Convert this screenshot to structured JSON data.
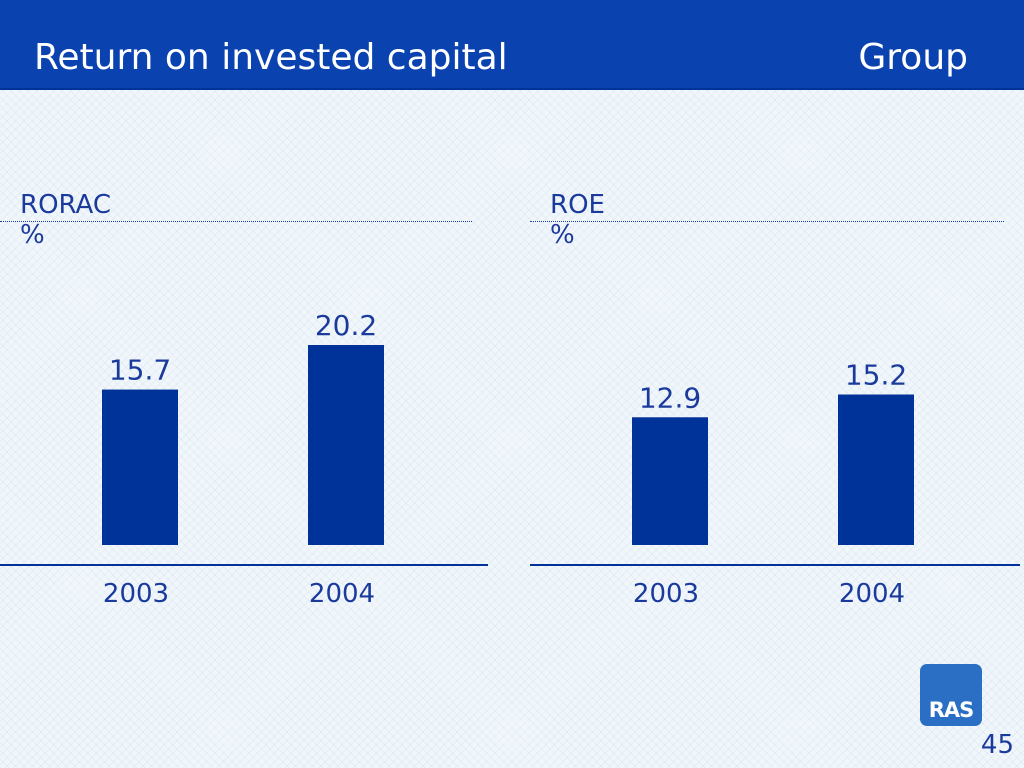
{
  "header": {
    "title": "Return on invested capital",
    "group": "Group"
  },
  "colors": {
    "header_bg": "#0a42b0",
    "bar": "#003399",
    "text": "#1a3a9c",
    "logo_bg": "#2a6fc4"
  },
  "chart_data": [
    {
      "type": "bar",
      "title": "RORAC",
      "unit": "%",
      "categories": [
        "2003",
        "2004"
      ],
      "values": [
        15.7,
        20.2
      ],
      "data_labels": [
        "15.7",
        "20.2"
      ]
    },
    {
      "type": "bar",
      "title": "ROE",
      "unit": "%",
      "categories": [
        "2003",
        "2004"
      ],
      "values": [
        12.9,
        15.2
      ],
      "data_labels": [
        "12.9",
        "15.2"
      ]
    }
  ],
  "logo": {
    "text": "RAS"
  },
  "page_number": "45"
}
